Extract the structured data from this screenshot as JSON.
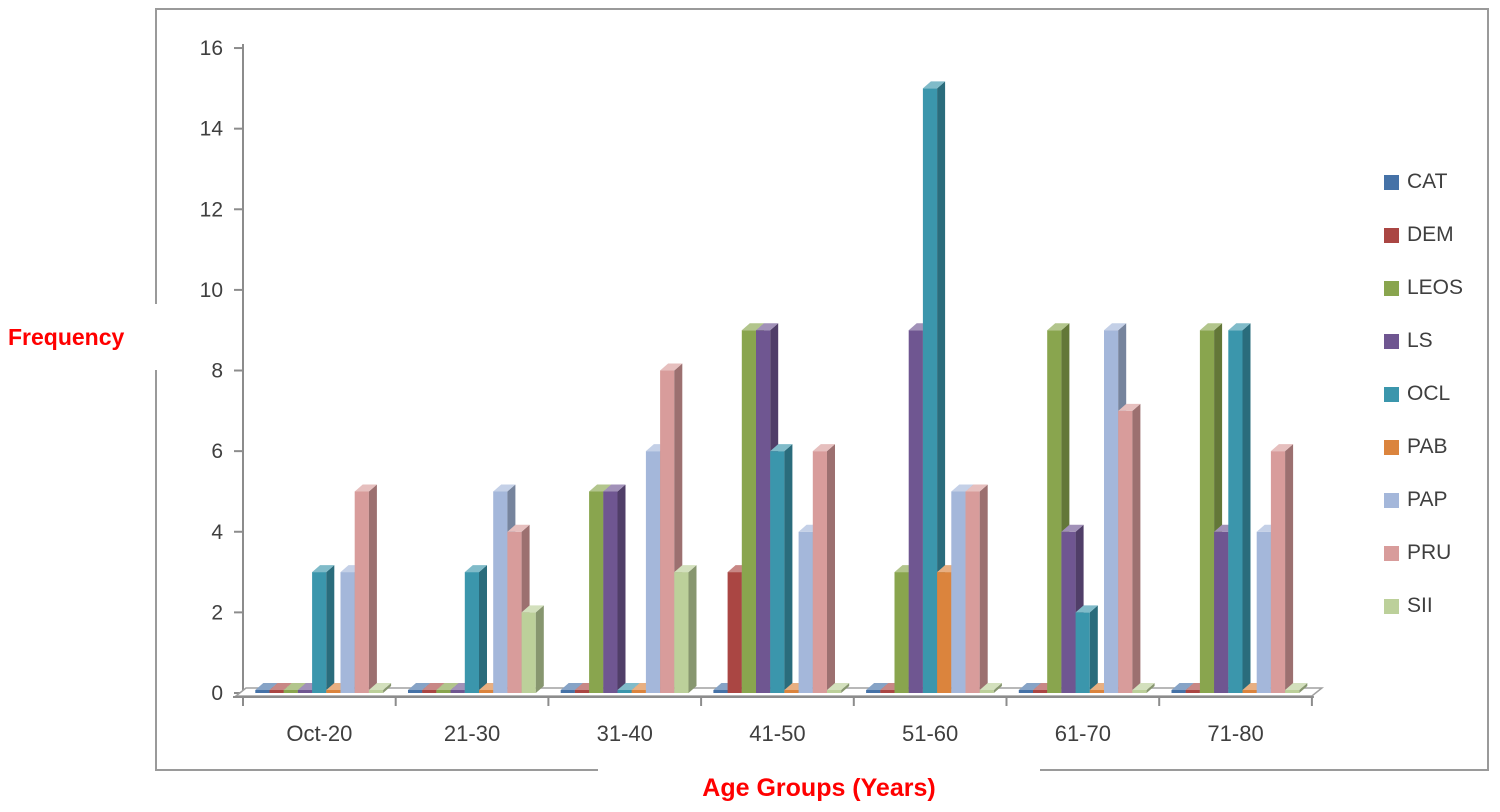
{
  "chart_data": {
    "type": "bar",
    "title": "",
    "xlabel": "Age Groups (Years)",
    "ylabel": "Frequency",
    "categories": [
      "Oct-20",
      "21-30",
      "31-40",
      "41-50",
      "51-60",
      "61-70",
      "71-80"
    ],
    "series": [
      {
        "name": "CAT",
        "color": "#4572A7",
        "values": [
          0,
          0,
          0,
          0,
          0,
          0,
          0
        ]
      },
      {
        "name": "DEM",
        "color": "#AA4643",
        "values": [
          0,
          0,
          0,
          3,
          0,
          0,
          0
        ]
      },
      {
        "name": "LEOS",
        "color": "#89A54E",
        "values": [
          0,
          0,
          5,
          9,
          3,
          9,
          9
        ]
      },
      {
        "name": "LS",
        "color": "#6F5691",
        "values": [
          0,
          0,
          5,
          9,
          9,
          4,
          4
        ]
      },
      {
        "name": "OCL",
        "color": "#3B96AC",
        "values": [
          3,
          3,
          0,
          6,
          15,
          2,
          9
        ]
      },
      {
        "name": "PAB",
        "color": "#DB843D",
        "values": [
          0,
          0,
          0,
          0,
          3,
          0,
          0
        ]
      },
      {
        "name": "PAP",
        "color": "#A4B7DA",
        "values": [
          3,
          5,
          6,
          4,
          5,
          9,
          4
        ]
      },
      {
        "name": "PRU",
        "color": "#D89C9B",
        "values": [
          5,
          4,
          8,
          6,
          5,
          7,
          6
        ]
      },
      {
        "name": "SII",
        "color": "#BCD09A",
        "values": [
          0,
          2,
          3,
          0,
          0,
          0,
          0
        ]
      }
    ],
    "ylim": [
      0,
      16
    ],
    "ytick_step": 2,
    "yticks": [
      "0",
      "2",
      "4",
      "6",
      "8",
      "10",
      "12",
      "14",
      "16"
    ],
    "grid": false,
    "legend_position": "right",
    "axis_title_color": "#FF0000",
    "tick_label_color": "#3f3f3f"
  }
}
